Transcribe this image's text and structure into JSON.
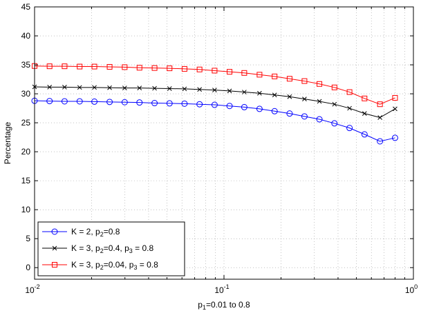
{
  "chart_data": {
    "type": "line",
    "x_scale": "log",
    "xlim": [
      0.01,
      1
    ],
    "ylim": [
      -2,
      45
    ],
    "grid": true,
    "legend_position": "bottom-left",
    "xlabel": "p_1=0.01 to 0.8",
    "xlabel_parts": {
      "pre": "p",
      "sub": "1",
      "post": "=0.01 to 0.8"
    },
    "ylabel": "Percentage",
    "y_ticks": [
      0,
      5,
      10,
      15,
      20,
      25,
      30,
      35,
      40,
      45
    ],
    "x_ticks": [
      {
        "value": 0.01,
        "base": "10",
        "exp": "-2"
      },
      {
        "value": 0.1,
        "base": "10",
        "exp": "-1"
      },
      {
        "value": 1,
        "base": "10",
        "exp": "0"
      }
    ],
    "x": [
      0.01,
      0.012,
      0.0144,
      0.0173,
      0.0207,
      0.0249,
      0.0299,
      0.0358,
      0.043,
      0.0516,
      0.0619,
      0.0743,
      0.0892,
      0.107,
      0.128,
      0.154,
      0.185,
      0.222,
      0.266,
      0.319,
      0.383,
      0.46,
      0.552,
      0.666,
      0.8
    ],
    "series": [
      {
        "legend_parts": [
          "K = 2, p",
          "2",
          "=0.8"
        ],
        "color": "#0000ff",
        "marker": "circle",
        "values": [
          28.8,
          28.75,
          28.7,
          28.7,
          28.65,
          28.6,
          28.55,
          28.5,
          28.4,
          28.35,
          28.3,
          28.2,
          28.1,
          27.9,
          27.7,
          27.4,
          27.0,
          26.6,
          26.1,
          25.6,
          24.9,
          24.1,
          23.0,
          21.8,
          22.4
        ]
      },
      {
        "legend_parts": [
          "K = 3, p",
          "2",
          "=0.4, p",
          "3",
          " = 0.8"
        ],
        "color": "#000000",
        "marker": "x",
        "values": [
          31.2,
          31.15,
          31.15,
          31.1,
          31.1,
          31.05,
          31.0,
          31.0,
          30.95,
          30.9,
          30.85,
          30.75,
          30.65,
          30.5,
          30.3,
          30.1,
          29.8,
          29.5,
          29.1,
          28.7,
          28.2,
          27.5,
          26.6,
          25.9,
          27.4
        ]
      },
      {
        "legend_parts": [
          "K = 3, p",
          "2",
          "=0.04, p",
          "3",
          " = 0.8"
        ],
        "color": "#ff0000",
        "marker": "square",
        "values": [
          34.8,
          34.75,
          34.75,
          34.7,
          34.7,
          34.65,
          34.6,
          34.5,
          34.45,
          34.4,
          34.3,
          34.2,
          34.0,
          33.8,
          33.6,
          33.3,
          33.0,
          32.6,
          32.2,
          31.7,
          31.1,
          30.3,
          29.2,
          28.2,
          29.3
        ]
      }
    ]
  }
}
